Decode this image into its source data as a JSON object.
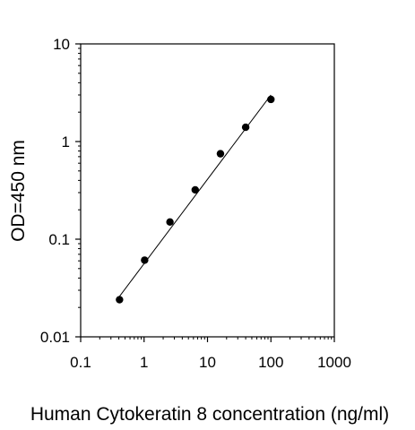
{
  "chart_data": {
    "type": "scatter",
    "title": "",
    "xlabel": "Human Cytokeratin 8 concentration (ng/ml)",
    "ylabel": "OD=450 nm",
    "x_scale": "log",
    "y_scale": "log",
    "xlim": [
      0.1,
      1000
    ],
    "ylim": [
      0.01,
      10
    ],
    "x_ticks": [
      "0.1",
      "1",
      "10",
      "100",
      "1000"
    ],
    "y_ticks": [
      "0.01",
      "0.1",
      "1",
      "10"
    ],
    "grid": false,
    "legend": "none",
    "series": [
      {
        "points": [
          {
            "x": 0.41,
            "y": 0.024
          },
          {
            "x": 1.02,
            "y": 0.061
          },
          {
            "x": 2.56,
            "y": 0.15
          },
          {
            "x": 6.4,
            "y": 0.32
          },
          {
            "x": 16,
            "y": 0.75
          },
          {
            "x": 40,
            "y": 1.4
          },
          {
            "x": 100,
            "y": 2.7
          }
        ]
      }
    ],
    "fit_line": {
      "x": [
        0.41,
        100
      ],
      "y": [
        0.026,
        3.0
      ]
    },
    "colors": {
      "points": "#000000",
      "line": "#000000",
      "axes": "#000000"
    }
  }
}
